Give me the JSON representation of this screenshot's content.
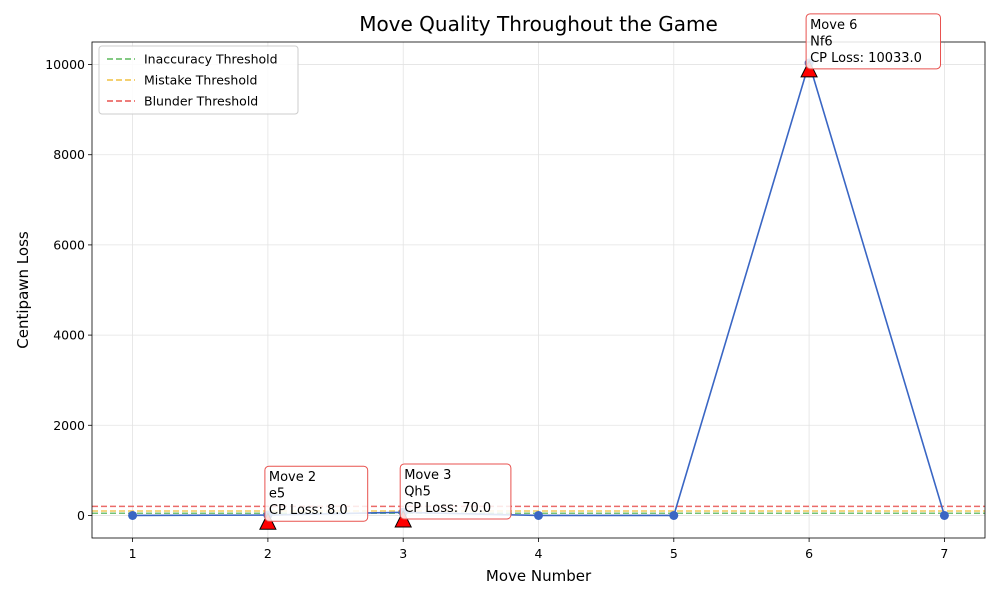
{
  "chart_data": {
    "type": "line",
    "title": "Move Quality Throughout the Game",
    "xlabel": "Move Number",
    "ylabel": "Centipawn Loss",
    "xlim": [
      0.7,
      7.3
    ],
    "ylim": [
      -500,
      10500
    ],
    "x_ticks": [
      1,
      2,
      3,
      4,
      5,
      6,
      7
    ],
    "y_ticks": [
      0,
      2000,
      4000,
      6000,
      8000,
      10000
    ],
    "grid": true,
    "legend_position": "top-left",
    "series": [
      {
        "x": [
          1,
          2,
          3,
          4,
          5,
          6,
          7
        ],
        "values": [
          0,
          8,
          70,
          0,
          0,
          10033,
          0
        ],
        "color": "#3a66c4"
      }
    ],
    "thresholds": [
      {
        "name": "Inaccuracy Threshold",
        "value": 50,
        "color": "#5cb85c"
      },
      {
        "name": "Mistake Threshold",
        "value": 100,
        "color": "#f0c040"
      },
      {
        "name": "Blunder Threshold",
        "value": 200,
        "color": "#e8524f"
      }
    ],
    "flagged_moves": [
      {
        "x": 2,
        "marker_y": -150,
        "lines": [
          "Move 2",
          "e5",
          "CP Loss: 8.0"
        ]
      },
      {
        "x": 3,
        "marker_y": -100,
        "lines": [
          "Move 3",
          "Qh5",
          "CP Loss: 70.0"
        ]
      },
      {
        "x": 6,
        "marker_y": 9883,
        "lines": [
          "Move 6",
          "Nf6",
          "CP Loss: 10033.0"
        ]
      }
    ]
  }
}
